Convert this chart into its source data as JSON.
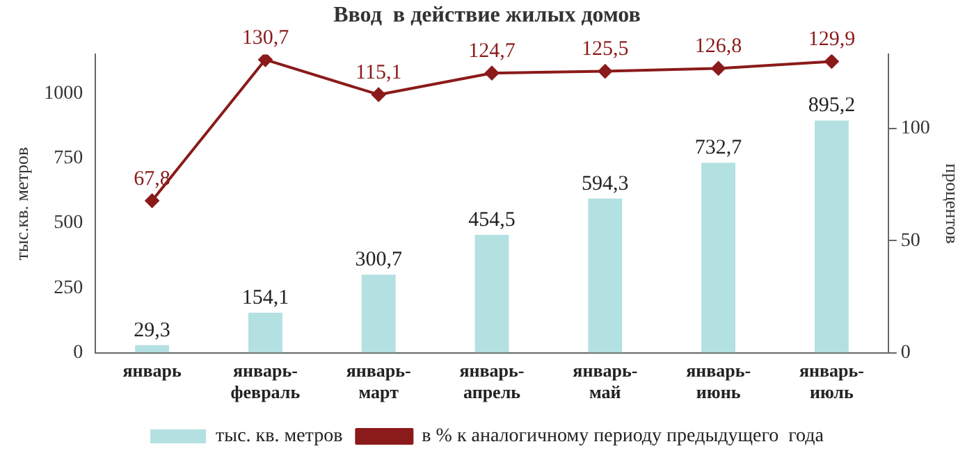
{
  "chart_data": {
    "type": "bar",
    "title": "Ввод  в действие жилых домов",
    "ylabel": "тыс.кв. метров",
    "y2label": "процентов",
    "categories": [
      "январь",
      "январь-февраль",
      "январь-март",
      "январь-апрель",
      "январь-май",
      "январь-июнь",
      "январь-июль"
    ],
    "series": [
      {
        "name": "тыс. кв. метров",
        "color": "#b3e0e0",
        "values": [
          29.3,
          154.1,
          300.7,
          454.5,
          594.3,
          732.7,
          895.2
        ],
        "value_labels": [
          "29,3",
          "154,1",
          "300,7",
          "454,5",
          "594,3",
          "732,7",
          "895,2"
        ]
      },
      {
        "name": "в % к аналогичному периоду предыдущего  года",
        "type": "line",
        "axis": "y2",
        "color": "#8b1a1a",
        "marker": "diamond",
        "values": [
          67.8,
          130.7,
          115.1,
          124.7,
          125.5,
          126.8,
          129.9
        ],
        "value_labels": [
          "67,8",
          "130,7",
          "115,1",
          "124,7",
          "125,5",
          "126,8",
          "129,9"
        ]
      }
    ],
    "ylim": [
      0,
      1150
    ],
    "yticks": [
      0,
      250,
      500,
      750,
      1000
    ],
    "y2lim": [
      0,
      133
    ],
    "y2ticks": [
      0,
      50,
      100
    ],
    "grid": false,
    "legend": "bottom"
  }
}
